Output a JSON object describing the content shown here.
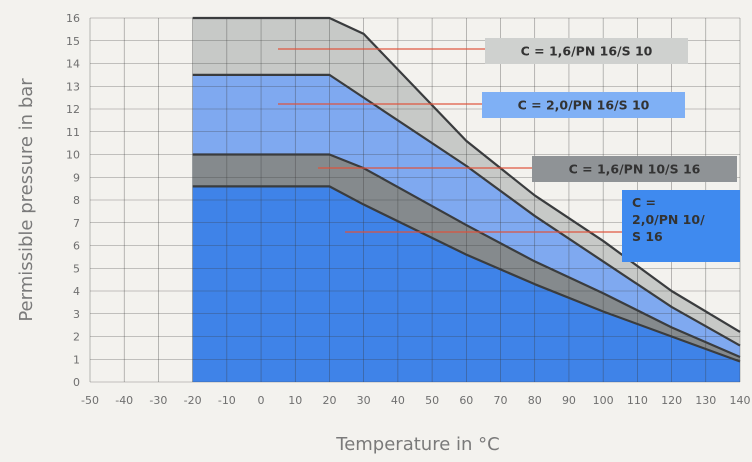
{
  "chart_data": {
    "type": "area",
    "title": "",
    "xlabel": "Temperature in °C",
    "ylabel": "Permissible pressure in bar",
    "xlim": [
      -50,
      140
    ],
    "ylim": [
      0,
      16
    ],
    "xticks": [
      "-50",
      "-40",
      "-30",
      "-20",
      "-10",
      "0",
      "10",
      "20",
      "30",
      "40",
      "50",
      "60",
      "70",
      "80",
      "90",
      "100",
      "110",
      "120",
      "130",
      "140"
    ],
    "yticks": [
      "0",
      "1",
      "2",
      "3",
      "4",
      "5",
      "6",
      "7",
      "8",
      "9",
      "10",
      "11",
      "12",
      "13",
      "14",
      "15",
      "16"
    ],
    "grid": true,
    "series": [
      {
        "name": "C = 1,6/PN 16/S 10",
        "color": "#c7c9c7",
        "points": [
          [
            -20,
            16
          ],
          [
            20,
            16
          ],
          [
            30,
            15.3
          ],
          [
            60,
            10.6
          ],
          [
            80,
            8.2
          ],
          [
            100,
            6.2
          ],
          [
            120,
            4.0
          ],
          [
            140,
            2.2
          ]
        ]
      },
      {
        "name": "C = 2,0/PN 16/S 10",
        "color": "#7fa9f0",
        "points": [
          [
            -20,
            13.5
          ],
          [
            20,
            13.5
          ],
          [
            30,
            12.5
          ],
          [
            60,
            9.5
          ],
          [
            80,
            7.3
          ],
          [
            100,
            5.3
          ],
          [
            120,
            3.3
          ],
          [
            140,
            1.6
          ]
        ]
      },
      {
        "name": "C = 1,6/PN 10/S 16",
        "color": "#858a8d",
        "points": [
          [
            -20,
            10
          ],
          [
            20,
            10
          ],
          [
            30,
            9.4
          ],
          [
            60,
            6.9
          ],
          [
            80,
            5.3
          ],
          [
            100,
            3.9
          ],
          [
            120,
            2.4
          ],
          [
            140,
            1.1
          ]
        ]
      },
      {
        "name": "C = 2,0/PN 10/S 16",
        "color": "#3f83e8",
        "points": [
          [
            -20,
            8.6
          ],
          [
            20,
            8.6
          ],
          [
            30,
            7.8
          ],
          [
            60,
            5.6
          ],
          [
            80,
            4.3
          ],
          [
            100,
            3.1
          ],
          [
            120,
            2.0
          ],
          [
            140,
            0.9
          ]
        ]
      }
    ],
    "legend_labels": [
      {
        "lines": [
          "C = 1,6/PN 16/S 10"
        ],
        "bg": "#cfd1cf",
        "arrow_from": 1
      },
      {
        "lines": [
          "C = 2,0/PN 16/S 10"
        ],
        "bg": "#7fb0f5",
        "arrow_from": 2
      },
      {
        "lines": [
          "C = 1,6/PN 10/S 16"
        ],
        "bg": "#8f9396",
        "arrow_from": 3
      },
      {
        "lines": [
          "C =",
          "2,0/PN 10/",
          "S 16"
        ],
        "bg": "#3f8aef",
        "arrow_from": 4
      }
    ]
  }
}
